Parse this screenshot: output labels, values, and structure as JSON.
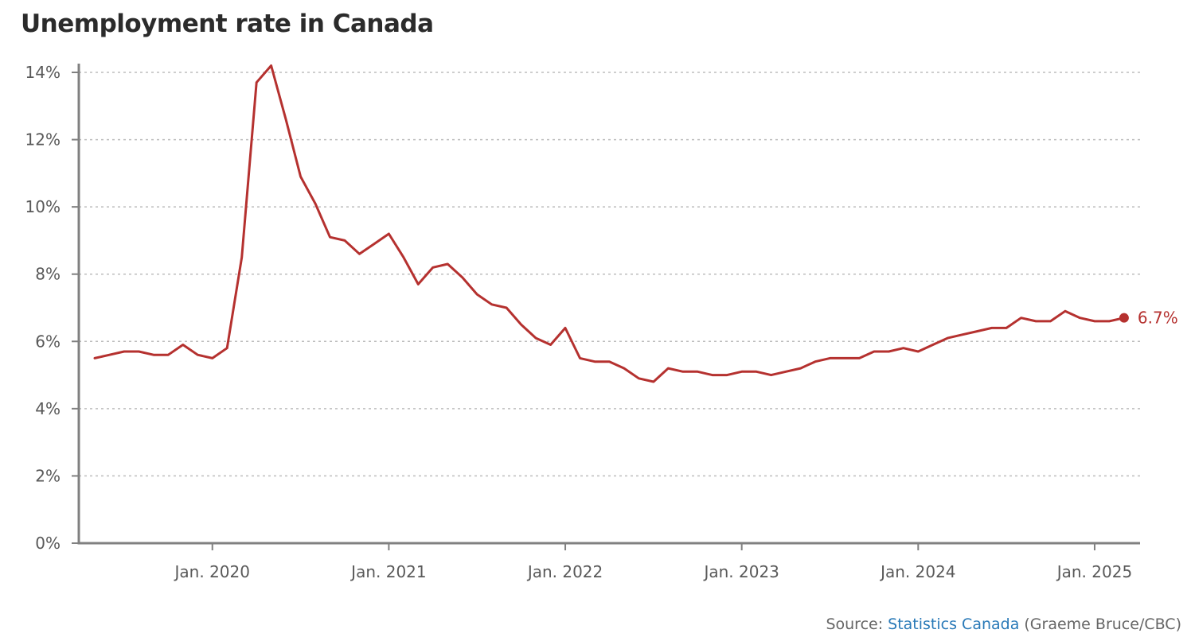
{
  "chart_data": {
    "type": "line",
    "title": "Unemployment rate in Canada",
    "ylabel": "",
    "xlabel": "",
    "ylim": [
      0,
      14
    ],
    "y_ticks": [
      0,
      2,
      4,
      6,
      8,
      10,
      12,
      14
    ],
    "y_tick_labels": [
      "0%",
      "2%",
      "4%",
      "6%",
      "8%",
      "10%",
      "12%",
      "14%"
    ],
    "x_ticks": [
      {
        "label": "Jan. 2020",
        "index": 8
      },
      {
        "label": "Jan. 2021",
        "index": 20
      },
      {
        "label": "Jan. 2022",
        "index": 32
      },
      {
        "label": "Jan. 2023",
        "index": 44
      },
      {
        "label": "Jan. 2024",
        "index": 56
      },
      {
        "label": "Jan. 2025",
        "index": 68
      }
    ],
    "start_month": "May 2019",
    "series": [
      {
        "name": "Unemployment rate",
        "color": "#b5312f",
        "values": [
          5.5,
          5.6,
          5.7,
          5.7,
          5.6,
          5.6,
          5.9,
          5.6,
          5.5,
          5.8,
          8.5,
          13.7,
          14.2,
          12.6,
          10.9,
          10.1,
          9.1,
          9.0,
          8.6,
          8.9,
          9.2,
          8.5,
          7.7,
          8.2,
          8.3,
          7.9,
          7.4,
          7.1,
          7.0,
          6.5,
          6.1,
          5.9,
          6.4,
          5.5,
          5.4,
          5.4,
          5.2,
          4.9,
          4.8,
          5.2,
          5.1,
          5.1,
          5.0,
          5.0,
          5.1,
          5.1,
          5.0,
          5.1,
          5.2,
          5.4,
          5.5,
          5.5,
          5.5,
          5.7,
          5.7,
          5.8,
          5.7,
          5.9,
          6.1,
          6.2,
          6.3,
          6.4,
          6.4,
          6.7,
          6.6,
          6.6,
          6.9,
          6.7,
          6.6,
          6.6,
          6.7
        ]
      }
    ],
    "end_label": "6.7%",
    "grid": "horizontal dotted"
  },
  "source": {
    "prefix": "Source: ",
    "link_text": "Statistics Canada",
    "suffix": " (Graeme Bruce/CBC)"
  },
  "colors": {
    "line": "#b5312f",
    "axis": "#808080",
    "grid": "#bdbdbd",
    "text": "#595959",
    "link": "#2a7ab8"
  }
}
